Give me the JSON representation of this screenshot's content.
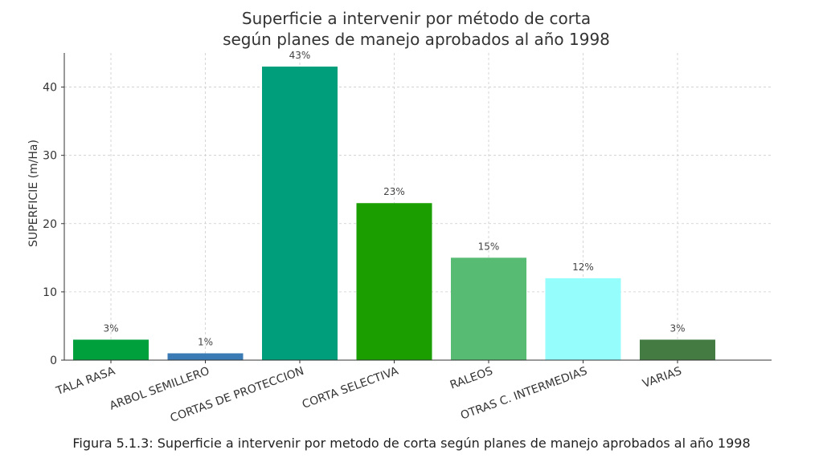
{
  "chart_data": {
    "type": "bar",
    "title_line1": "Superficie a intervenir por método de corta",
    "title_line2": "según planes de manejo aprobados al año 1998",
    "xlabel": "",
    "ylabel": "SUPERFICIE  (m/Ha)",
    "ylim": [
      0,
      45
    ],
    "yticks": [
      0,
      10,
      20,
      30,
      40
    ],
    "grid": true,
    "categories": [
      "TALA RASA",
      "ARBOL SEMILLERO",
      "CORTAS DE PROTECCION",
      "CORTA SELECTIVA",
      "RALEOS",
      "OTRAS C. INTERMEDIAS",
      "VARIAS"
    ],
    "values": [
      3,
      1,
      43,
      23,
      15,
      12,
      3
    ],
    "data_labels": [
      "3%",
      "1%",
      "43%",
      "23%",
      "15%",
      "12%",
      "3%"
    ],
    "colors": [
      "#00A03C",
      "#3B7BB5",
      "#009E7A",
      "#1A9E00",
      "#57BB74",
      "#95FDFB",
      "#437B43"
    ]
  },
  "caption": "Figura 5.1.3: Superficie a intervenir por metodo de corta según planes de manejo aprobados al año 1998"
}
